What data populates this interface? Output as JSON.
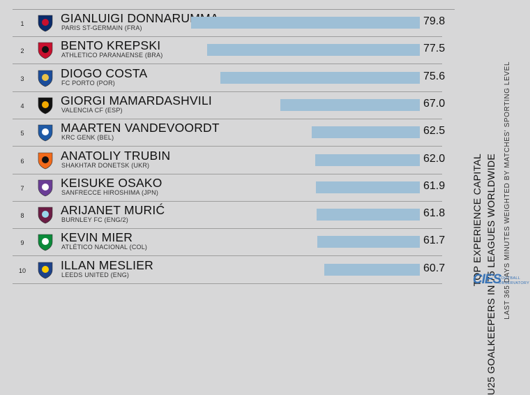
{
  "chart_data": {
    "type": "bar",
    "title": "TOP EXPERIENCE CAPITAL",
    "subtitle": "U25 GOALKEEPERS IN 75 LEAGUES WORLDWIDE",
    "note": "LAST 365 DAYS MINUTES WEIGHTED BY MATCHES' SPORTING LEVEL",
    "rows": [
      {
        "rank": "1",
        "name": "GIANLUIGI DONNARUMMA",
        "club": "PARIS ST-GERMAIN (FRA)",
        "value": 79.8,
        "value_label": "79.8",
        "crest_icon": "psg-crest-icon",
        "crest_colors": [
          "#0a2b6b",
          "#c8102e"
        ]
      },
      {
        "rank": "2",
        "name": "BENTO KREPSKI",
        "club": "ATHLETICO PARANAENSE (BRA)",
        "value": 77.5,
        "value_label": "77.5",
        "crest_icon": "athletico-crest-icon",
        "crest_colors": [
          "#c8102e",
          "#111111"
        ]
      },
      {
        "rank": "3",
        "name": "DIOGO COSTA",
        "club": "FC PORTO (POR)",
        "value": 75.6,
        "value_label": "75.6",
        "crest_icon": "porto-crest-icon",
        "crest_colors": [
          "#1b4d9b",
          "#e8c24a"
        ]
      },
      {
        "rank": "4",
        "name": "GIORGI MAMARDASHVILI",
        "club": "VALENCIA CF (ESP)",
        "value": 67.0,
        "value_label": "67.0",
        "crest_icon": "valencia-crest-icon",
        "crest_colors": [
          "#111111",
          "#f2a900"
        ]
      },
      {
        "rank": "5",
        "name": "MAARTEN VANDEVOORDT",
        "club": "KRC GENK (BEL)",
        "value": 62.5,
        "value_label": "62.5",
        "crest_icon": "genk-crest-icon",
        "crest_colors": [
          "#1f5aa6",
          "#ffffff"
        ]
      },
      {
        "rank": "6",
        "name": "ANATOLIY TRUBIN",
        "club": "SHAKHTAR DONETSK (UKR)",
        "value": 62.0,
        "value_label": "62.0",
        "crest_icon": "shakhtar-crest-icon",
        "crest_colors": [
          "#f26a1b",
          "#111111"
        ]
      },
      {
        "rank": "7",
        "name": "KEISUKE OSAKO",
        "club": "SANFRECCE HIROSHIMA (JPN)",
        "value": 61.9,
        "value_label": "61.9",
        "crest_icon": "sanfrecce-crest-icon",
        "crest_colors": [
          "#6a3d96",
          "#ffffff"
        ]
      },
      {
        "rank": "8",
        "name": "ARIJANET MURIĆ",
        "club": "BURNLEY FC (ENG/2)",
        "value": 61.8,
        "value_label": "61.8",
        "crest_icon": "burnley-crest-icon",
        "crest_colors": [
          "#6c1d45",
          "#99d6ea"
        ]
      },
      {
        "rank": "9",
        "name": "KEVIN MIER",
        "club": "ATLÉTICO NACIONAL (COL)",
        "value": 61.7,
        "value_label": "61.7",
        "crest_icon": "nacional-crest-icon",
        "crest_colors": [
          "#0b8a3a",
          "#ffffff"
        ]
      },
      {
        "rank": "10",
        "name": "ILLAN MESLIER",
        "club": "LEEDS UNITED (ENG)",
        "value": 60.7,
        "value_label": "60.7",
        "crest_icon": "leeds-crest-icon",
        "crest_colors": [
          "#1d428a",
          "#ffcd00"
        ]
      }
    ],
    "bar_color": "#9ebfd6",
    "grid": false
  },
  "brand": {
    "logo_text": "CIES",
    "logo_sub1": "FOOTBALL",
    "logo_sub2": "OBSERVATORY",
    "color": "#3a74b6"
  }
}
